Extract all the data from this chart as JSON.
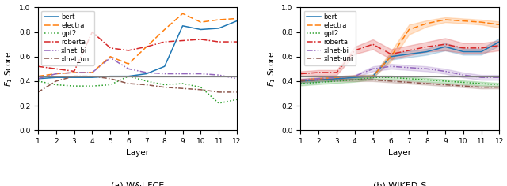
{
  "layers": [
    1,
    2,
    3,
    4,
    5,
    6,
    7,
    8,
    9,
    10,
    11,
    12
  ],
  "wai_fce": {
    "bert": [
      0.42,
      0.43,
      0.43,
      0.43,
      0.44,
      0.44,
      0.46,
      0.52,
      0.85,
      0.82,
      0.83,
      0.89
    ],
    "electra": [
      0.44,
      0.46,
      0.47,
      0.47,
      0.6,
      0.54,
      0.68,
      0.82,
      0.95,
      0.88,
      0.9,
      0.91
    ],
    "gpt2": [
      0.4,
      0.37,
      0.36,
      0.36,
      0.37,
      0.44,
      0.4,
      0.37,
      0.38,
      0.35,
      0.22,
      0.25
    ],
    "roberta": [
      0.52,
      0.5,
      0.48,
      0.8,
      0.67,
      0.65,
      0.68,
      0.72,
      0.73,
      0.74,
      0.72,
      0.72
    ],
    "xlnet_bi": [
      0.42,
      0.46,
      0.47,
      0.47,
      0.59,
      0.5,
      0.47,
      0.46,
      0.46,
      0.46,
      0.45,
      0.42
    ],
    "xlnet_uni": [
      0.31,
      0.4,
      0.44,
      0.44,
      0.42,
      0.38,
      0.37,
      0.35,
      0.34,
      0.33,
      0.31,
      0.31
    ],
    "baseline": 0.435
  },
  "wiked_s": {
    "bert": [
      0.4,
      0.41,
      0.42,
      0.43,
      0.44,
      0.6,
      0.62,
      0.64,
      0.68,
      0.64,
      0.64,
      0.72
    ],
    "bert_std": [
      0.015,
      0.015,
      0.015,
      0.015,
      0.015,
      0.025,
      0.025,
      0.025,
      0.03,
      0.025,
      0.025,
      0.03
    ],
    "electra": [
      0.41,
      0.42,
      0.43,
      0.44,
      0.44,
      0.6,
      0.82,
      0.87,
      0.9,
      0.89,
      0.88,
      0.86
    ],
    "electra_std": [
      0.01,
      0.01,
      0.01,
      0.01,
      0.01,
      0.04,
      0.04,
      0.025,
      0.02,
      0.02,
      0.02,
      0.025
    ],
    "gpt2": [
      0.38,
      0.39,
      0.4,
      0.41,
      0.43,
      0.43,
      0.42,
      0.41,
      0.4,
      0.39,
      0.38,
      0.37
    ],
    "gpt2_std": [
      0.015,
      0.015,
      0.015,
      0.015,
      0.015,
      0.015,
      0.015,
      0.015,
      0.015,
      0.015,
      0.015,
      0.015
    ],
    "roberta": [
      0.46,
      0.47,
      0.47,
      0.65,
      0.7,
      0.62,
      0.65,
      0.68,
      0.7,
      0.67,
      0.67,
      0.69
    ],
    "roberta_std": [
      0.02,
      0.02,
      0.02,
      0.03,
      0.04,
      0.04,
      0.04,
      0.04,
      0.05,
      0.04,
      0.04,
      0.04
    ],
    "xlnet_bi": [
      0.41,
      0.42,
      0.43,
      0.44,
      0.5,
      0.52,
      0.51,
      0.5,
      0.48,
      0.45,
      0.43,
      0.43
    ],
    "xlnet_bi_std": [
      0.01,
      0.01,
      0.01,
      0.01,
      0.02,
      0.02,
      0.02,
      0.02,
      0.02,
      0.02,
      0.02,
      0.02
    ],
    "xlnet_uni": [
      0.4,
      0.41,
      0.41,
      0.41,
      0.41,
      0.4,
      0.39,
      0.38,
      0.37,
      0.36,
      0.35,
      0.35
    ],
    "xlnet_uni_std": [
      0.01,
      0.01,
      0.01,
      0.01,
      0.01,
      0.01,
      0.01,
      0.01,
      0.01,
      0.01,
      0.01,
      0.01
    ],
    "baseline": 0.435
  },
  "colors": {
    "bert": "#1f77b4",
    "electra": "#ff7f0e",
    "gpt2": "#2ca02c",
    "roberta": "#d62728",
    "xlnet_bi": "#9467bd",
    "xlnet_uni": "#8c564b"
  },
  "title_a": "(a) W&I-FCE",
  "title_b": "(b) WIKED-S",
  "ylabel": "$F_1$ Score",
  "xlabel": "Layer",
  "ylim": [
    0.0,
    1.0
  ],
  "yticks": [
    0.0,
    0.2,
    0.4,
    0.6,
    0.8,
    1.0
  ]
}
